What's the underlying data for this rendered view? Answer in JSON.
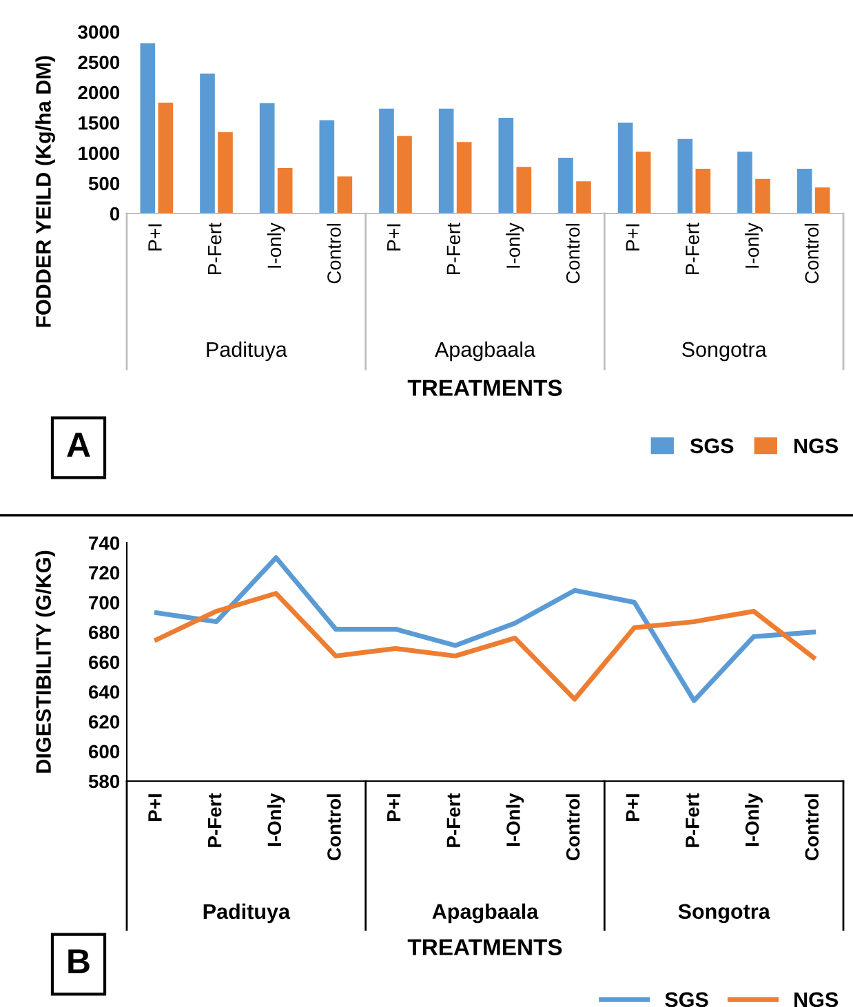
{
  "chart_data": [
    {
      "type": "bar",
      "ylabel": "FODDER YEILD (Kg/ha DM)",
      "xlabel": "TREATMENTS",
      "categories": [
        "P+I",
        "P-Fert",
        "I-only",
        "Control",
        "P+I",
        "P-Fert",
        "I-only",
        "Control",
        "P+I",
        "P-Fert",
        "I-only",
        "Control"
      ],
      "series": [
        {
          "name": "SGS",
          "color": "#5b9bd5",
          "values": [
            2810,
            2310,
            1820,
            1540,
            1730,
            1730,
            1580,
            920,
            1500,
            1230,
            1020,
            740
          ]
        },
        {
          "name": "NGS",
          "color": "#ed7d31",
          "values": [
            1830,
            1340,
            750,
            610,
            1280,
            1180,
            770,
            530,
            1020,
            740,
            570,
            430
          ]
        }
      ],
      "ylim": [
        0,
        3000
      ],
      "yticks": [
        0,
        500,
        1000,
        1500,
        2000,
        2500,
        3000
      ],
      "legend": "bottom right",
      "annotations": [
        "Padituya",
        "Apagbaala",
        "Songotra",
        "A"
      ]
    },
    {
      "type": "line",
      "ylabel": "DIGESTIBILITY (G/KG)",
      "xlabel": "TREATMENTS",
      "categories": [
        "P+I",
        "P-Fert",
        "I-Only",
        "Control",
        "P+I",
        "P-Fert",
        "I-Only",
        "Control",
        "P+I",
        "P-Fert",
        "I-Only",
        "Control"
      ],
      "series": [
        {
          "name": "SGS",
          "color": "#5b9bd5",
          "values": [
            693,
            687,
            730,
            682,
            682,
            671,
            686,
            708,
            700,
            634,
            677,
            680
          ]
        },
        {
          "name": "NGS",
          "color": "#ed7d31",
          "values": [
            675,
            694,
            706,
            664,
            669,
            664,
            676,
            635,
            683,
            687,
            694,
            663
          ]
        }
      ],
      "ylim": [
        580,
        740
      ],
      "yticks": [
        580,
        600,
        620,
        640,
        660,
        680,
        700,
        720,
        740
      ],
      "legend": "bottom right",
      "annotations": [
        "Padituya",
        "Apagbaala",
        "Songotra",
        "B"
      ]
    }
  ]
}
